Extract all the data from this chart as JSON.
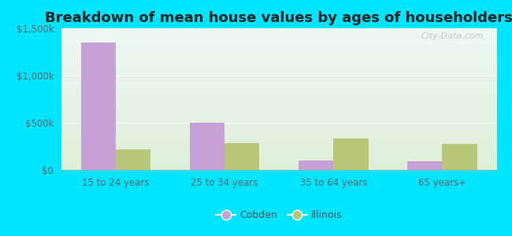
{
  "title": "Breakdown of mean house values by ages of householders",
  "categories": [
    "15 to 24 years",
    "25 to 34 years",
    "35 to 64 years",
    "65 years+"
  ],
  "cobden_values": [
    1350000,
    500000,
    100000,
    95000
  ],
  "illinois_values": [
    215000,
    280000,
    330000,
    275000
  ],
  "cobden_color": "#c8a0d8",
  "illinois_color": "#b8c878",
  "ylim": [
    0,
    1500000
  ],
  "yticks": [
    0,
    500000,
    1000000,
    1500000
  ],
  "ytick_labels": [
    "$0",
    "$500k",
    "$1,000k",
    "$1,500k"
  ],
  "bar_width": 0.32,
  "background_outer": "#00e5ff",
  "title_fontsize": 13,
  "tick_fontsize": 8.5,
  "legend_fontsize": 9,
  "watermark": "City-Data.com"
}
